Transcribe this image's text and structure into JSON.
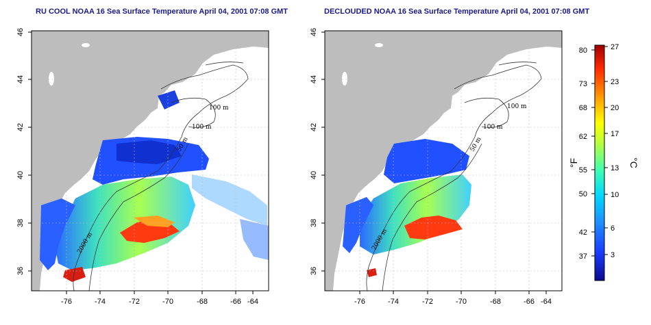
{
  "maps": [
    {
      "title": "RU COOL NOAA 16 Sea Surface Temperature April 04, 2001 07:08 GMT",
      "x_ticks": [
        "-76",
        "-74",
        "-72",
        "-70",
        "-68",
        "-66",
        "-64"
      ],
      "y_ticks": [
        "36",
        "38",
        "40",
        "42",
        "44",
        "46"
      ],
      "contour_labels": [
        "100 m",
        "100 m",
        "50 m",
        "2000 m"
      ]
    },
    {
      "title": "DECLOUDED NOAA 16 Sea Surface Temperature April 04, 2001 07:08 GMT",
      "x_ticks": [
        "-76",
        "-74",
        "-72",
        "-70",
        "-68",
        "-66",
        "-64"
      ],
      "y_ticks": [
        "36",
        "38",
        "40",
        "42",
        "44",
        "46"
      ],
      "contour_labels": [
        "100 m",
        "100 m",
        "50 m",
        "2000 m"
      ]
    }
  ],
  "colorbar": {
    "fahrenheit_label": "°F",
    "celsius_label": "°C",
    "fahrenheit_ticks": [
      "80",
      "73",
      "68",
      "62",
      "55",
      "50",
      "42",
      "37"
    ],
    "celsius_ticks": [
      "27",
      "23",
      "20",
      "17",
      "13",
      "10",
      "6",
      "3"
    ],
    "range_c": [
      0,
      27
    ],
    "colors": [
      "#0a0a8c",
      "#1a3cff",
      "#1e90ff",
      "#00d8ff",
      "#40ffb0",
      "#b4ff40",
      "#ffff00",
      "#ff9a00",
      "#ff2a00",
      "#a00000"
    ]
  },
  "colors": {
    "land": "#bdbdbd",
    "water_no_data": "#ffffff",
    "title": "#1a1a8c",
    "grid": "#bbbbbb"
  }
}
